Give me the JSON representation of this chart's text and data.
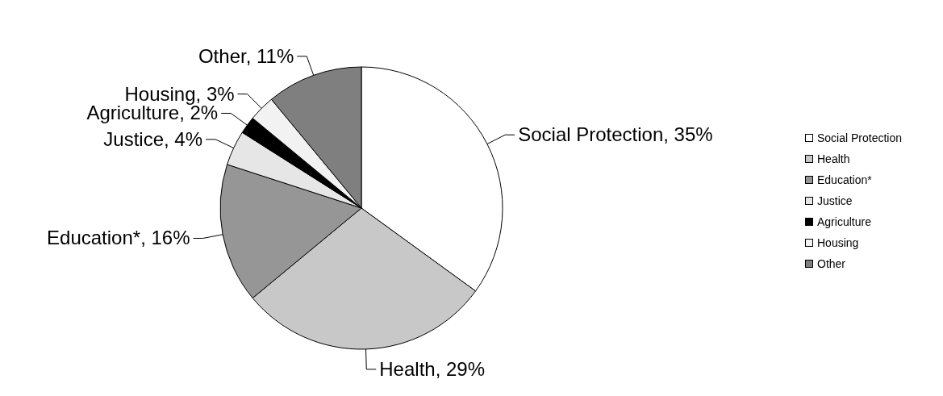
{
  "chart_data": {
    "type": "pie",
    "categories": [
      "Social Protection",
      "Health",
      "Education*",
      "Justice",
      "Agriculture",
      "Housing",
      "Other"
    ],
    "values": [
      35,
      29,
      16,
      4,
      2,
      3,
      11
    ],
    "value_labels": [
      "Social Protection, 35%",
      "Health, 29%",
      "Education*, 16%",
      "Justice, 4%",
      "Agriculture, 2%",
      "Housing, 3%",
      "Other, 11%"
    ],
    "colors": [
      "#ffffff",
      "#c8c8c8",
      "#969696",
      "#e6e6e6",
      "#000000",
      "#f2f2f2",
      "#7f7f7f"
    ],
    "legend": "right"
  }
}
